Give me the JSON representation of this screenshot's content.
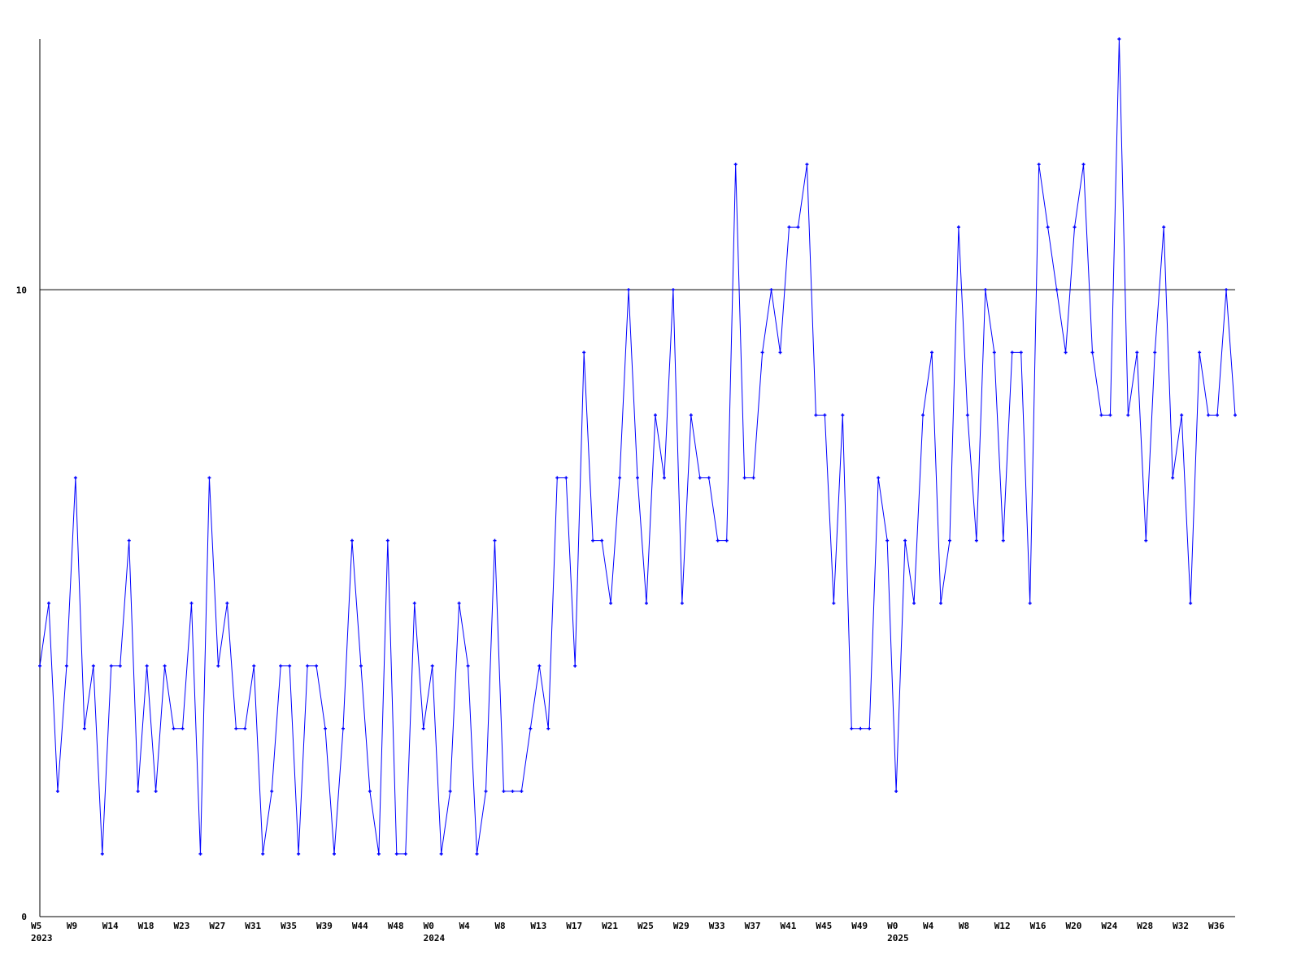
{
  "chart_data": {
    "type": "line",
    "title": "",
    "xlabel": "",
    "ylabel": "",
    "ylim": [
      0,
      14
    ],
    "y_ticks": [
      0,
      10
    ],
    "grid": "horizontal line at 10 only",
    "legend": "none",
    "colors": {
      "series": "#0000ff",
      "axis": "#000000"
    },
    "x_ticks": [
      {
        "index": 0,
        "label": "W5",
        "year": "2023"
      },
      {
        "index": 4,
        "label": "W9"
      },
      {
        "index": 8,
        "label": "W14"
      },
      {
        "index": 12,
        "label": "W18"
      },
      {
        "index": 16,
        "label": "W23"
      },
      {
        "index": 20,
        "label": "W27"
      },
      {
        "index": 24,
        "label": "W31"
      },
      {
        "index": 28,
        "label": "W35"
      },
      {
        "index": 32,
        "label": "W39"
      },
      {
        "index": 36,
        "label": "W44"
      },
      {
        "index": 40,
        "label": "W48"
      },
      {
        "index": 44,
        "label": "W0",
        "year": "2024"
      },
      {
        "index": 48,
        "label": "W4"
      },
      {
        "index": 52,
        "label": "W8"
      },
      {
        "index": 56,
        "label": "W13"
      },
      {
        "index": 60,
        "label": "W17"
      },
      {
        "index": 64,
        "label": "W21"
      },
      {
        "index": 68,
        "label": "W25"
      },
      {
        "index": 72,
        "label": "W29"
      },
      {
        "index": 76,
        "label": "W33"
      },
      {
        "index": 80,
        "label": "W37"
      },
      {
        "index": 84,
        "label": "W41"
      },
      {
        "index": 88,
        "label": "W45"
      },
      {
        "index": 92,
        "label": "W49"
      },
      {
        "index": 96,
        "label": "W0",
        "year": "2025"
      },
      {
        "index": 100,
        "label": "W4"
      },
      {
        "index": 104,
        "label": "W8"
      },
      {
        "index": 108,
        "label": "W12"
      },
      {
        "index": 112,
        "label": "W16"
      },
      {
        "index": 116,
        "label": "W20"
      },
      {
        "index": 120,
        "label": "W24"
      },
      {
        "index": 124,
        "label": "W28"
      },
      {
        "index": 128,
        "label": "W32"
      },
      {
        "index": 132,
        "label": "W36"
      }
    ],
    "values": [
      4,
      5,
      2,
      4,
      7,
      3,
      4,
      1,
      4,
      4,
      6,
      2,
      4,
      2,
      4,
      3,
      3,
      5,
      1,
      7,
      4,
      5,
      3,
      3,
      4,
      1,
      2,
      4,
      4,
      1,
      4,
      4,
      3,
      1,
      3,
      6,
      4,
      2,
      1,
      6,
      1,
      1,
      5,
      3,
      4,
      1,
      2,
      5,
      4,
      1,
      2,
      6,
      2,
      2,
      2,
      3,
      4,
      3,
      7,
      7,
      4,
      9,
      6,
      6,
      5,
      7,
      10,
      7,
      5,
      8,
      7,
      10,
      5,
      8,
      7,
      7,
      6,
      6,
      12,
      7,
      7,
      9,
      10,
      9,
      11,
      11,
      12,
      8,
      8,
      5,
      8,
      3,
      3,
      3,
      7,
      6,
      2,
      6,
      5,
      8,
      9,
      5,
      6,
      11,
      8,
      6,
      10,
      9,
      6,
      9,
      9,
      5,
      12,
      11,
      10,
      9,
      11,
      12,
      9,
      8,
      8,
      14,
      8,
      9,
      6,
      9,
      11,
      7,
      8,
      5,
      9,
      8,
      8,
      10,
      8
    ]
  }
}
